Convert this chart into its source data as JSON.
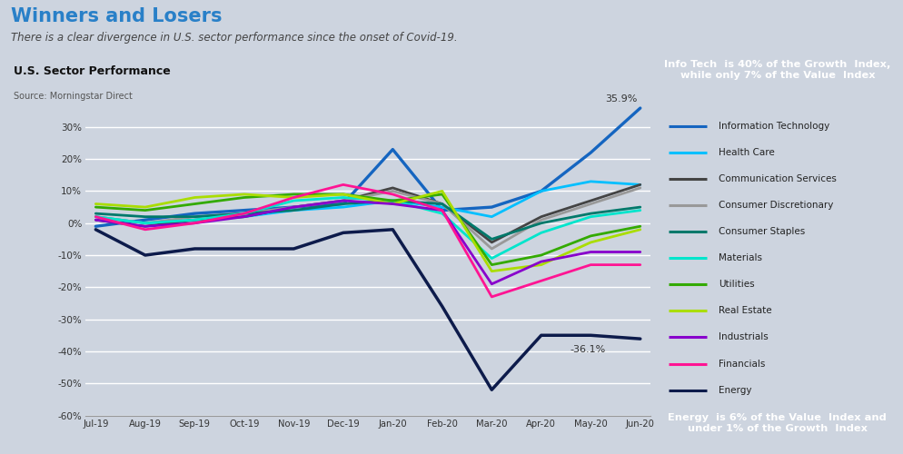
{
  "title": "Winners and Losers",
  "subtitle": "There is a clear divergence in U.S. sector performance since the onset of Covid-19.",
  "chart_label": "U.S. Sector Performance",
  "source": "Source: Morningstar Direct",
  "background_color": "#cdd4df",
  "plot_bg": "#cdd4df",
  "x_labels": [
    "Jul-19",
    "Aug-19",
    "Sep-19",
    "Oct-19",
    "Nov-19",
    "Dec-19",
    "Jan-20",
    "Feb-20",
    "Mar-20",
    "Apr-20",
    "May-20",
    "Jun-20"
  ],
  "series": [
    {
      "name": "Information Technology",
      "color": "#1565C0",
      "linewidth": 2.4,
      "data": [
        -1,
        1,
        3,
        4,
        5,
        6,
        23,
        4,
        5,
        10,
        22,
        35.9
      ]
    },
    {
      "name": "Health Care",
      "color": "#00BFFF",
      "linewidth": 2.0,
      "data": [
        2,
        0,
        1,
        2,
        4,
        5,
        7,
        5,
        2,
        10,
        13,
        12
      ]
    },
    {
      "name": "Communication Services",
      "color": "#444444",
      "linewidth": 2.0,
      "data": [
        1,
        -1,
        1,
        2,
        5,
        7,
        11,
        6,
        -6,
        2,
        7,
        12
      ]
    },
    {
      "name": "Consumer Discretionary",
      "color": "#999999",
      "linewidth": 2.0,
      "data": [
        2,
        0,
        2,
        3,
        5,
        7,
        10,
        6,
        -8,
        1,
        6,
        11
      ]
    },
    {
      "name": "Consumer Staples",
      "color": "#00796B",
      "linewidth": 2.0,
      "data": [
        3,
        2,
        2,
        3,
        4,
        6,
        7,
        6,
        -5,
        0,
        3,
        5
      ]
    },
    {
      "name": "Materials",
      "color": "#00E5CC",
      "linewidth": 2.0,
      "data": [
        2,
        0,
        1,
        3,
        7,
        8,
        7,
        3,
        -11,
        -3,
        2,
        4
      ]
    },
    {
      "name": "Utilities",
      "color": "#33AA00",
      "linewidth": 2.0,
      "data": [
        5,
        4,
        6,
        8,
        9,
        9,
        7,
        9,
        -13,
        -10,
        -4,
        -1
      ]
    },
    {
      "name": "Real Estate",
      "color": "#AADD00",
      "linewidth": 2.0,
      "data": [
        6,
        5,
        8,
        9,
        8,
        9,
        6,
        10,
        -15,
        -13,
        -6,
        -2
      ]
    },
    {
      "name": "Industrials",
      "color": "#8800CC",
      "linewidth": 2.0,
      "data": [
        1,
        -1,
        0,
        2,
        5,
        7,
        6,
        4,
        -19,
        -12,
        -9,
        -9
      ]
    },
    {
      "name": "Financials",
      "color": "#FF1493",
      "linewidth": 2.0,
      "data": [
        2,
        -2,
        0,
        3,
        8,
        12,
        9,
        4,
        -23,
        -18,
        -13,
        -13
      ]
    },
    {
      "name": "Energy",
      "color": "#0D1B4B",
      "linewidth": 2.5,
      "data": [
        -2,
        -10,
        -8,
        -8,
        -8,
        -3,
        -2,
        -26,
        -52,
        -35,
        -35,
        -36.1
      ]
    }
  ],
  "ylim": [
    -60,
    42
  ],
  "yticks": [
    -60,
    -50,
    -40,
    -30,
    -20,
    -10,
    0,
    10,
    20,
    30
  ],
  "ytick_labels": [
    "-60%",
    "-50%",
    "-40%",
    "-30%",
    "-20%",
    "-10%",
    "0%",
    "10%",
    "20%",
    "30%"
  ],
  "info_tech_label": "35.9%",
  "energy_label": "-36.1%",
  "top_box_text": "Info Tech  is 40% of the Growth  Index,\nwhile only 7% of the Value  Index",
  "top_box_color": "#2980C8",
  "bottom_box_text": "Energy  is 6% of the Value  Index and\nunder 1% of the Growth  Index",
  "bottom_box_color": "#1B2A5A",
  "title_color": "#2980C8",
  "legend_bg": "#e2e7ef",
  "grid_color": "#b8bfc9"
}
